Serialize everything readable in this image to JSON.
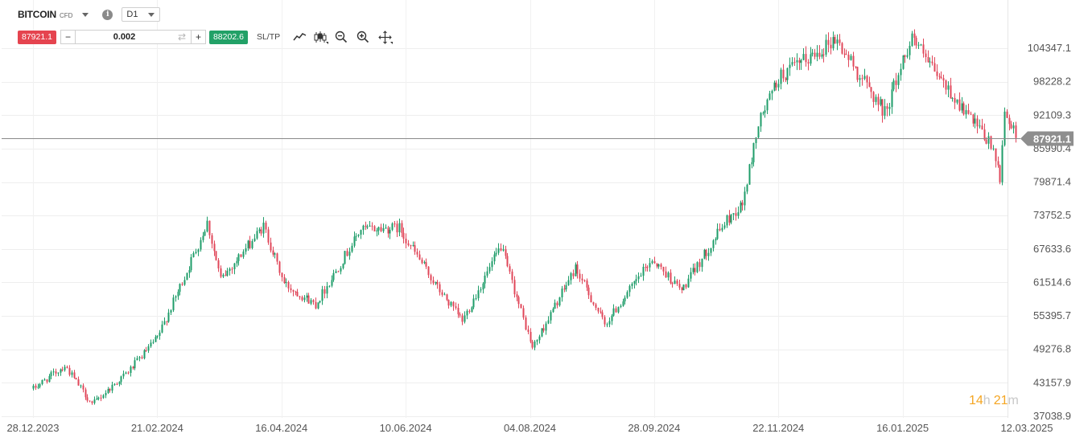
{
  "instrument": {
    "name": "BITCOIN",
    "type": "CFD",
    "timeframe": "D1"
  },
  "trade": {
    "sell_price": "87921.1",
    "buy_price": "88202.6",
    "quantity": "0.002",
    "minus_label": "−",
    "plus_label": "+",
    "sltp_label": "SL/TP"
  },
  "icons": [
    "info-icon",
    "swap-icon",
    "line-chart-icon",
    "candlestick-icon",
    "zoom-out-icon",
    "zoom-in-icon",
    "crosshair-move-icon"
  ],
  "colors": {
    "up": "#1f9d6a",
    "down": "#e0475a",
    "sell": "#e5444f",
    "buy": "#22a167",
    "price_line": "#8a8a8a",
    "price_tag": "#8e8e8e",
    "countdown": "#f5a623"
  },
  "countdown": {
    "hours": "14",
    "hours_unit": "h",
    "minutes": "21",
    "minutes_unit": "m"
  },
  "chart_data": {
    "type": "candlestick",
    "title": "",
    "ylim": [
      35500,
      112800
    ],
    "y_ticks": [
      "104347.1",
      "98228.2",
      "92109.3",
      "85990.4",
      "79871.4",
      "73752.5",
      "67633.6",
      "61514.6",
      "55395.7",
      "49276.8",
      "43157.9",
      "37038.9"
    ],
    "y_tick_values": [
      104347.1,
      98228.2,
      92109.3,
      85990.4,
      79871.4,
      73752.5,
      67633.6,
      61514.6,
      55395.7,
      49276.8,
      43157.9,
      37038.9
    ],
    "x_ticks": [
      "28.12.2023",
      "21.02.2024",
      "16.04.2024",
      "10.06.2024",
      "04.08.2024",
      "28.09.2024",
      "22.11.2024",
      "16.01.2025",
      "12.03.2025"
    ],
    "current_price": 87921.1,
    "current_price_label": "87921.1",
    "grid": true,
    "series": [
      {
        "date": "2023-12-28",
        "close": 42100
      },
      {
        "date": "2024-01-11",
        "close": 46300
      },
      {
        "date": "2024-01-23",
        "close": 39200
      },
      {
        "date": "2024-02-08",
        "close": 45200
      },
      {
        "date": "2024-02-21",
        "close": 51400
      },
      {
        "date": "2024-03-05",
        "close": 63500
      },
      {
        "date": "2024-03-14",
        "close": 72500
      },
      {
        "date": "2024-03-20",
        "close": 62000
      },
      {
        "date": "2024-04-08",
        "close": 71800
      },
      {
        "date": "2024-04-17",
        "close": 61300
      },
      {
        "date": "2024-05-01",
        "close": 57500
      },
      {
        "date": "2024-05-21",
        "close": 71200
      },
      {
        "date": "2024-06-07",
        "close": 71500
      },
      {
        "date": "2024-06-24",
        "close": 60500
      },
      {
        "date": "2024-07-05",
        "close": 54500
      },
      {
        "date": "2024-07-22",
        "close": 68100
      },
      {
        "date": "2024-08-05",
        "close": 49500
      },
      {
        "date": "2024-08-24",
        "close": 64200
      },
      {
        "date": "2024-09-06",
        "close": 53800
      },
      {
        "date": "2024-09-27",
        "close": 65800
      },
      {
        "date": "2024-10-10",
        "close": 60000
      },
      {
        "date": "2024-10-29",
        "close": 72400
      },
      {
        "date": "2024-11-06",
        "close": 75800
      },
      {
        "date": "2024-11-13",
        "close": 90600
      },
      {
        "date": "2024-11-22",
        "close": 98900
      },
      {
        "date": "2024-12-05",
        "close": 102500
      },
      {
        "date": "2024-12-17",
        "close": 106100
      },
      {
        "date": "2025-01-08",
        "close": 92600
      },
      {
        "date": "2025-01-20",
        "close": 106800
      },
      {
        "date": "2025-01-27",
        "close": 101500
      },
      {
        "date": "2025-02-03",
        "close": 97800
      },
      {
        "date": "2025-02-25",
        "close": 86000
      },
      {
        "date": "2025-02-28",
        "close": 79800
      },
      {
        "date": "2025-03-02",
        "close": 93300
      },
      {
        "date": "2025-03-07",
        "close": 87921.1
      }
    ]
  }
}
